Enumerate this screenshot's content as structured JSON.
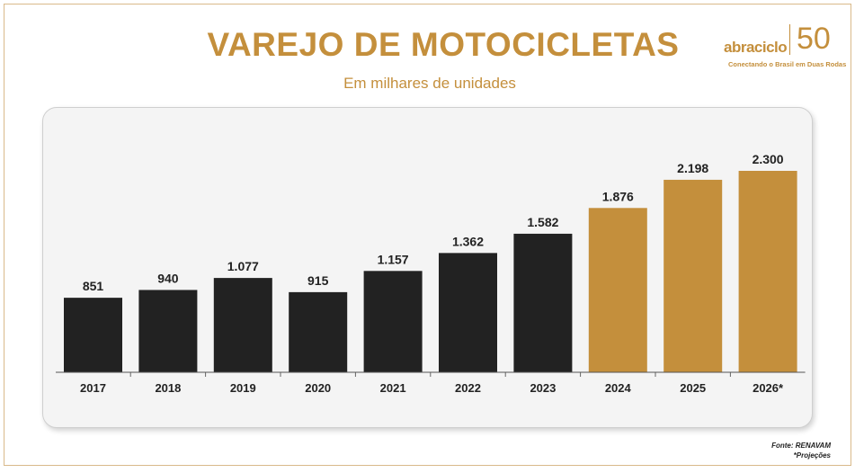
{
  "header": {
    "title": "VAREJO DE MOTOCICLETAS",
    "subtitle": "Em milhares de unidades"
  },
  "logo": {
    "brand": "abraciclo",
    "anniversary": "50",
    "tagline": "Conectando o Brasil em Duas Rodas"
  },
  "footer": {
    "source": "Fonte: RENAVAM",
    "note": "*Projeções"
  },
  "colors": {
    "accent": "#c48f3c",
    "actual": "#222222",
    "projection": "#c48f3c"
  },
  "chart_data": {
    "type": "bar",
    "title": "VAREJO DE MOTOCICLETAS",
    "subtitle": "Em milhares de unidades",
    "xlabel": "",
    "ylabel": "",
    "categories": [
      "2017",
      "2018",
      "2019",
      "2020",
      "2021",
      "2022",
      "2023",
      "2024",
      "2025",
      "2026*"
    ],
    "values": [
      851,
      940,
      1077,
      915,
      1157,
      1362,
      1582,
      1876,
      2198,
      2300
    ],
    "value_labels": [
      "851",
      "940",
      "1.077",
      "915",
      "1.157",
      "1.362",
      "1.582",
      "1.876",
      "2.198",
      "2.300"
    ],
    "projection_flags": [
      false,
      false,
      false,
      false,
      false,
      false,
      false,
      true,
      true,
      true
    ],
    "ylim": [
      0,
      2300
    ],
    "grid": false,
    "legend": "none"
  }
}
